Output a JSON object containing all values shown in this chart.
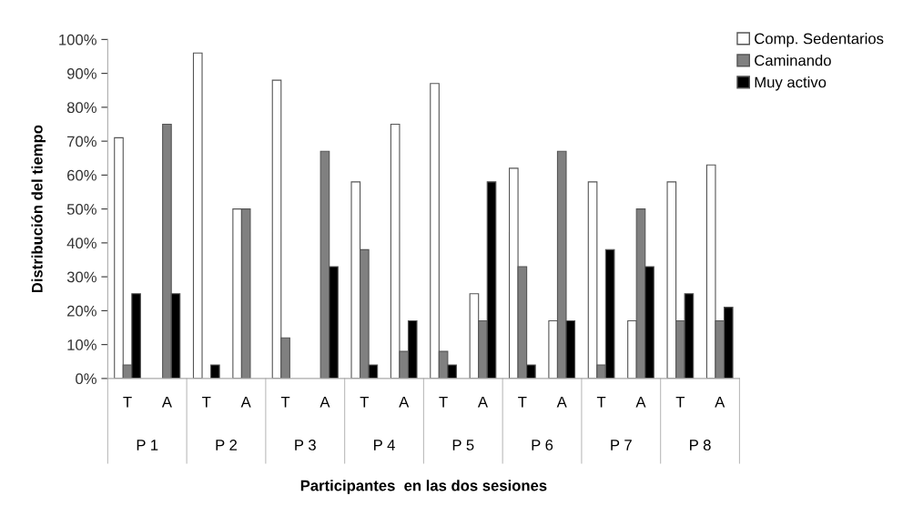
{
  "chart_data": {
    "type": "bar",
    "categories": [
      "T",
      "A",
      "T",
      "A",
      "T",
      "A",
      "T",
      "A",
      "T",
      "A",
      "T",
      "A",
      "T",
      "A",
      "T",
      "A"
    ],
    "series": [
      {
        "name": "Comp. Sedentarios",
        "color": "#ffffff",
        "values": [
          71,
          0,
          96,
          50,
          88,
          0,
          58,
          75,
          87,
          25,
          62,
          17,
          58,
          17,
          58,
          63
        ]
      },
      {
        "name": "Caminando",
        "color": "#808080",
        "values": [
          4,
          75,
          0,
          50,
          12,
          67,
          38,
          8,
          8,
          17,
          33,
          67,
          4,
          50,
          17,
          17
        ]
      },
      {
        "name": "Muy activo",
        "color": "#000000",
        "values": [
          25,
          25,
          4,
          0,
          0,
          33,
          4,
          17,
          4,
          58,
          4,
          17,
          38,
          33,
          25,
          21
        ]
      }
    ],
    "ylabel": "Distribución del tiempo",
    "xlabel": "Participantes  en las dos sesiones",
    "annotations": [
      "P 1",
      "P 2",
      "P 3",
      "P 4",
      "P 5",
      "P 6",
      "P 7",
      "P 8"
    ],
    "ylim": [
      0,
      100
    ],
    "yticks": [
      {
        "value": 0,
        "label": "0%"
      },
      {
        "value": 10,
        "label": "10%"
      },
      {
        "value": 20,
        "label": "20%"
      },
      {
        "value": 30,
        "label": "30%"
      },
      {
        "value": 40,
        "label": "40%"
      },
      {
        "value": 50,
        "label": "50%"
      },
      {
        "value": 60,
        "label": "60%"
      },
      {
        "value": 70,
        "label": "70%"
      },
      {
        "value": 80,
        "label": "80%"
      },
      {
        "value": 90,
        "label": "90%"
      },
      {
        "value": 100,
        "label": "100%"
      }
    ],
    "grid": false,
    "legend": "top right"
  }
}
